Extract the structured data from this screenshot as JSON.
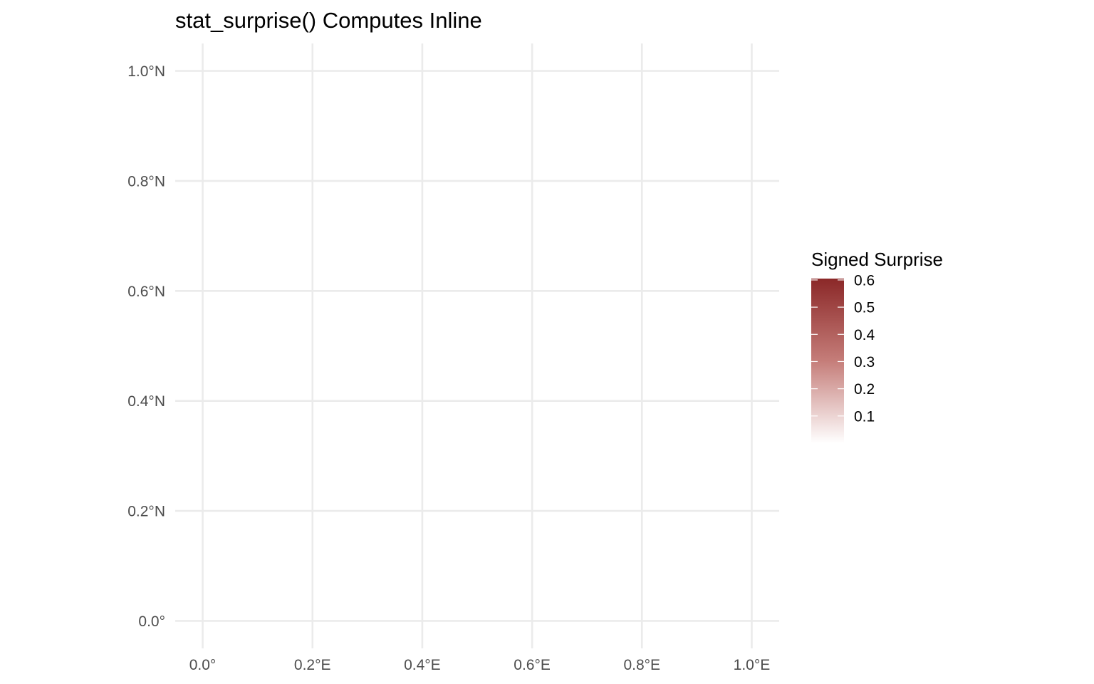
{
  "chart_data": {
    "type": "heatmap",
    "title": "stat_surprise() Computes Inline",
    "x_ticks": [
      "0.0°",
      "0.2°E",
      "0.4°E",
      "0.6°E",
      "0.8°E",
      "1.0°E"
    ],
    "y_ticks": [
      "0.0°",
      "0.2°N",
      "0.4°N",
      "0.6°N",
      "0.8°N",
      "1.0°N"
    ],
    "x_tick_values": [
      0.0,
      0.2,
      0.4,
      0.6,
      0.8,
      1.0
    ],
    "y_tick_values": [
      0.0,
      0.2,
      0.4,
      0.6,
      0.8,
      1.0
    ],
    "xlim": [
      -0.05,
      1.05
    ],
    "ylim": [
      -0.05,
      1.05
    ],
    "grid": true,
    "values": [],
    "legend": {
      "title": "Signed Surprise",
      "position": "right",
      "labels": [
        "0.6",
        "0.5",
        "0.4",
        "0.3",
        "0.2",
        "0.1"
      ],
      "values": [
        0.6,
        0.5,
        0.4,
        0.3,
        0.2,
        0.1
      ],
      "range": [
        0.0,
        0.605
      ],
      "color_high": "#8b2828",
      "color_low": "#ffffff"
    }
  }
}
